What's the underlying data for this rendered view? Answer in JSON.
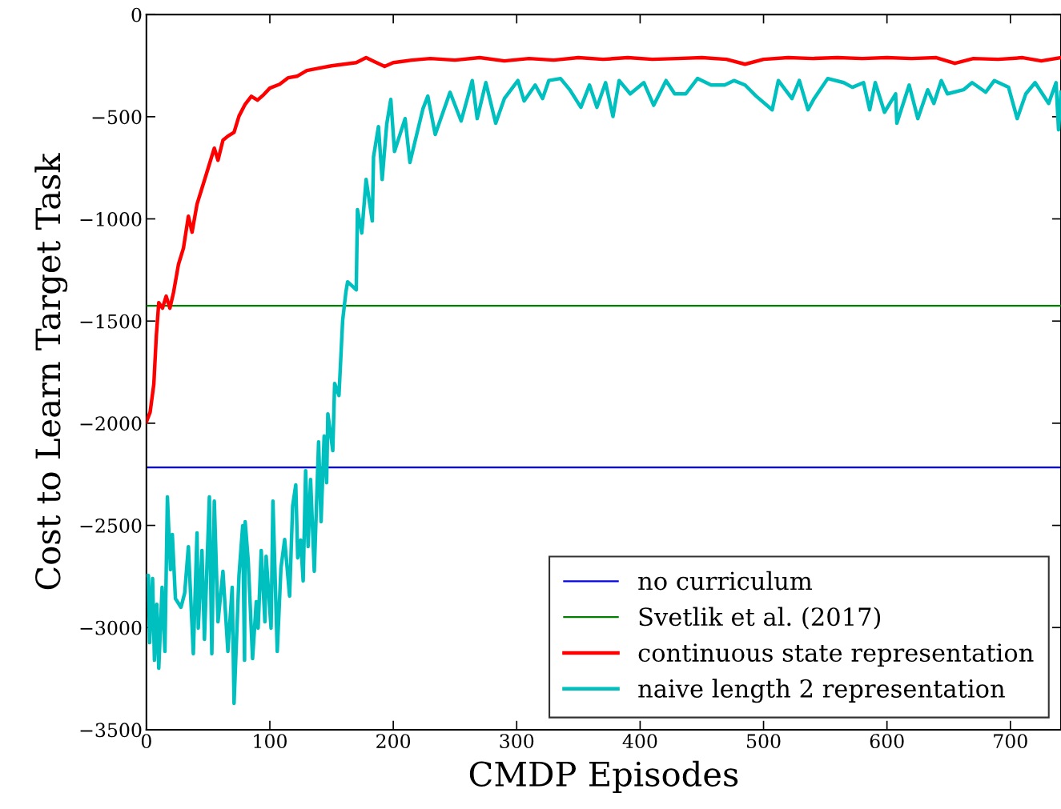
{
  "chart_data": {
    "type": "line",
    "xlabel": "CMDP Episodes",
    "ylabel": "Cost to Learn Target Task",
    "xlim": [
      0,
      741
    ],
    "ylim": [
      -3500,
      0
    ],
    "xticks": [
      0,
      100,
      200,
      300,
      400,
      500,
      600,
      700
    ],
    "yticks": [
      -3500,
      -3000,
      -2500,
      -2000,
      -1500,
      -1000,
      -500,
      0
    ],
    "grid": false,
    "legend": "bottom right",
    "line_style": "solid",
    "marker": "none",
    "series": [
      {
        "name": "no curriculum",
        "color": "#0000ff",
        "x": [
          0,
          741
        ],
        "values": [
          -2216,
          -2216
        ]
      },
      {
        "name": "Svetlik et al. (2017)",
        "color": "#008000",
        "x": [
          0,
          741
        ],
        "values": [
          -1425,
          -1425
        ]
      },
      {
        "name": "continuous state representation",
        "color": "#ff0000",
        "x": [
          0,
          3,
          6,
          8,
          10,
          13,
          16,
          19,
          22,
          26,
          30,
          34,
          37,
          41,
          45,
          50,
          55,
          58,
          62,
          66,
          71,
          75,
          80,
          85,
          90,
          95,
          100,
          108,
          115,
          122,
          130,
          140,
          150,
          160,
          170,
          178,
          185,
          193,
          200,
          215,
          230,
          250,
          270,
          290,
          310,
          330,
          350,
          370,
          390,
          410,
          430,
          450,
          470,
          485,
          500,
          520,
          540,
          560,
          580,
          600,
          620,
          640,
          655,
          670,
          690,
          710,
          725,
          741
        ],
        "values": [
          -1993,
          -1946,
          -1809,
          -1574,
          -1410,
          -1437,
          -1378,
          -1437,
          -1359,
          -1222,
          -1143,
          -987,
          -1065,
          -928,
          -850,
          -752,
          -654,
          -713,
          -615,
          -595,
          -576,
          -497,
          -439,
          -400,
          -419,
          -392,
          -360,
          -341,
          -309,
          -302,
          -274,
          -262,
          -251,
          -243,
          -235,
          -211,
          -231,
          -254,
          -235,
          -223,
          -215,
          -223,
          -211,
          -227,
          -215,
          -223,
          -211,
          -219,
          -211,
          -219,
          -215,
          -211,
          -219,
          -243,
          -219,
          -211,
          -215,
          -211,
          -215,
          -211,
          -215,
          -211,
          -239,
          -215,
          -219,
          -211,
          -227,
          -211
        ]
      },
      {
        "name": "naive length 2 representation",
        "color": "#00bfbf",
        "x": [
          0,
          1.6,
          2.6,
          5,
          6.5,
          8.4,
          10,
          12.7,
          15,
          17,
          19.5,
          21,
          23.5,
          28,
          31,
          34,
          38,
          41,
          42,
          45,
          47,
          51,
          53,
          55,
          58,
          62,
          66,
          69.5,
          71,
          75,
          78,
          79.5,
          80,
          82.5,
          86,
          89,
          90.5,
          93,
          96,
          97,
          101,
          102.5,
          106,
          109,
          112,
          116,
          118.5,
          121,
          122.6,
          125,
          127,
          129,
          131,
          133,
          136,
          139.5,
          141.5,
          144,
          146,
          147,
          151,
          152.5,
          156,
          159,
          161.6,
          163,
          170,
          171,
          174.5,
          178,
          183,
          184,
          188,
          191,
          194.7,
          198,
          201,
          209.6,
          213.5,
          224,
          228,
          234,
          246,
          255,
          264,
          268,
          275,
          283,
          290,
          301,
          306,
          315,
          321,
          326,
          335.5,
          343,
          352,
          359,
          365,
          372,
          378,
          383,
          392,
          403,
          411,
          421,
          428,
          437,
          446.5,
          457.5,
          468.5,
          476,
          485,
          494,
          507,
          512,
          523,
          529,
          536,
          541,
          552,
          565,
          572,
          581,
          586,
          590.5,
          598,
          607,
          608,
          618,
          625,
          633,
          638,
          644,
          649,
          662,
          669,
          680,
          687,
          698.5,
          705.5,
          712.5,
          720,
          731,
          737,
          739,
          741
        ],
        "values": [
          -2745,
          -2745,
          -3074,
          -2760,
          -3160,
          -2886,
          -3199,
          -2803,
          -3117,
          -2361,
          -2717,
          -2545,
          -2858,
          -2901,
          -2831,
          -2604,
          -3128,
          -2537,
          -3003,
          -2623,
          -3058,
          -2361,
          -3128,
          -2381,
          -2972,
          -2725,
          -3117,
          -2803,
          -3371,
          -2745,
          -2502,
          -3160,
          -2482,
          -2674,
          -3152,
          -2874,
          -3003,
          -2623,
          -2972,
          -2651,
          -3003,
          -2381,
          -3117,
          -2709,
          -2569,
          -2846,
          -2404,
          -2302,
          -2659,
          -2572,
          -2772,
          -2232,
          -2604,
          -2275,
          -2725,
          -2091,
          -2482,
          -2063,
          -2291,
          -1954,
          -2134,
          -1805,
          -1864,
          -1496,
          -1359,
          -1308,
          -1347,
          -955,
          -1069,
          -807,
          -1010,
          -697,
          -548,
          -807,
          -536,
          -415,
          -670,
          -509,
          -724,
          -462,
          -399,
          -587,
          -380,
          -521,
          -323,
          -509,
          -333,
          -532,
          -411,
          -323,
          -423,
          -345,
          -411,
          -323,
          -313,
          -368,
          -454,
          -345,
          -454,
          -333,
          -499,
          -323,
          -388,
          -333,
          -444,
          -323,
          -388,
          -388,
          -313,
          -345,
          -345,
          -323,
          -345,
          -399,
          -466,
          -323,
          -411,
          -323,
          -466,
          -411,
          -313,
          -333,
          -356,
          -333,
          -466,
          -333,
          -478,
          -388,
          -532,
          -345,
          -509,
          -368,
          -435,
          -323,
          -388,
          -368,
          -333,
          -380,
          -323,
          -356,
          -509,
          -388,
          -333,
          -435,
          -333,
          -564,
          -380
        ]
      }
    ]
  }
}
